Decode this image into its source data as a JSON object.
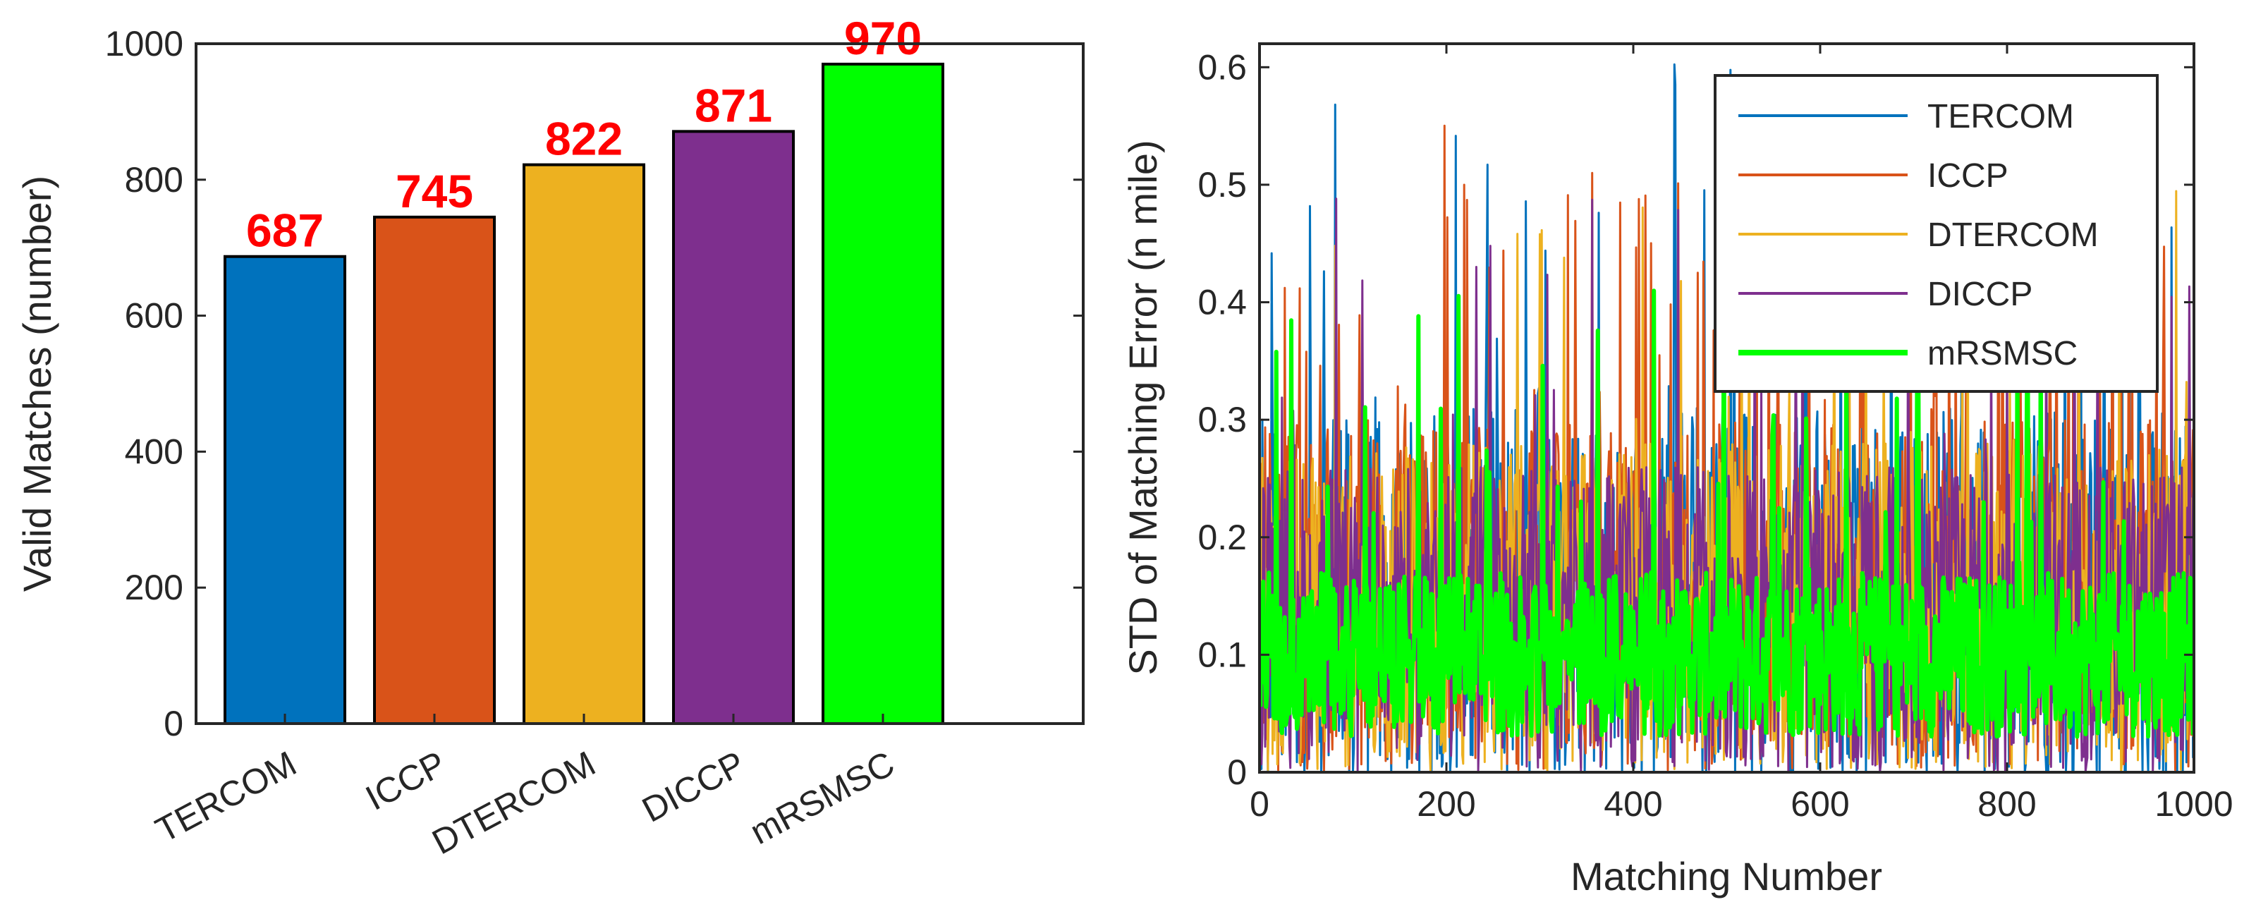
{
  "chart_data": [
    {
      "type": "bar",
      "title": "",
      "xlabel": "",
      "ylabel": "Valid Matches (number)",
      "ylim": [
        0,
        1000
      ],
      "yticks": [
        0,
        200,
        400,
        600,
        800,
        1000
      ],
      "categories": [
        "TERCOM",
        "ICCP",
        "DTERCOM",
        "DICCP",
        "mRSMSC"
      ],
      "values": [
        687,
        745,
        822,
        871,
        970
      ],
      "data_labels": [
        "687",
        "745",
        "822",
        "871",
        "970"
      ],
      "bar_colors": [
        "#0072BD",
        "#D95319",
        "#EDB120",
        "#7E2F8E",
        "#00FF00"
      ],
      "label_color": "#FF0000",
      "grid": false
    },
    {
      "type": "line",
      "title": "",
      "xlabel": "Matching Number",
      "ylabel": "STD of Matching Error (n mile)",
      "xlim": [
        0,
        1000
      ],
      "ylim": [
        0,
        0.62
      ],
      "xticks": [
        0,
        200,
        400,
        600,
        800,
        1000
      ],
      "yticks": [
        0,
        0.1,
        0.2,
        0.3,
        0.4,
        0.5,
        0.6
      ],
      "ytick_labels": [
        "0",
        "0.1",
        "0.2",
        "0.3",
        "0.4",
        "0.5",
        "0.6"
      ],
      "grid": false,
      "legend_position": "top-right",
      "series": [
        {
          "name": "TERCOM",
          "color": "#0072BD",
          "mean": 0.15,
          "spread": 0.16,
          "max": 0.62,
          "n": 1000
        },
        {
          "name": "ICCP",
          "color": "#D95319",
          "mean": 0.15,
          "spread": 0.15,
          "max": 0.555,
          "n": 1000
        },
        {
          "name": "DTERCOM",
          "color": "#EDB120",
          "mean": 0.14,
          "spread": 0.14,
          "max": 0.51,
          "n": 1000
        },
        {
          "name": "DICCP",
          "color": "#7E2F8E",
          "mean": 0.13,
          "spread": 0.13,
          "max": 0.495,
          "n": 1000
        },
        {
          "name": "mRSMSC",
          "color": "#00FF00",
          "mean": 0.1,
          "spread": 0.07,
          "max": 0.415,
          "n": 1000
        }
      ]
    }
  ]
}
